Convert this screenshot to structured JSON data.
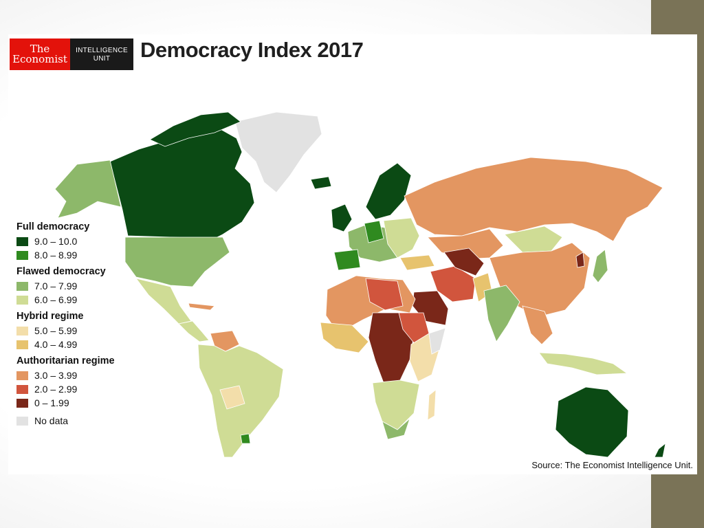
{
  "logo": {
    "line1": "The",
    "line2": "Economist",
    "unit1": "INTELLIGENCE",
    "unit2": "UNIT"
  },
  "title": "Democracy Index 2017",
  "source": "Source: The Economist Intelligence Unit.",
  "legend": [
    {
      "category": "Full democracy",
      "items": [
        {
          "label": "9.0 – 10.0",
          "color": "#0b4a14"
        },
        {
          "label": "8.0 – 8.99",
          "color": "#2f8a1f"
        }
      ]
    },
    {
      "category": "Flawed democracy",
      "items": [
        {
          "label": "7.0 – 7.99",
          "color": "#8db86a"
        },
        {
          "label": "6.0 – 6.99",
          "color": "#cfdc95"
        }
      ]
    },
    {
      "category": "Hybrid regime",
      "items": [
        {
          "label": "5.0 – 5.99",
          "color": "#f3deaa"
        },
        {
          "label": "4.0 – 4.99",
          "color": "#e7c36e"
        }
      ]
    },
    {
      "category": "Authoritarian regime",
      "items": [
        {
          "label": "3.0 – 3.99",
          "color": "#e39661"
        },
        {
          "label": "2.0 – 2.99",
          "color": "#d1553d"
        },
        {
          "label": "0 – 1.99",
          "color": "#7a2719"
        }
      ]
    },
    {
      "category": "",
      "items": [
        {
          "label": "No data",
          "color": "#e2e2e2"
        }
      ]
    }
  ],
  "colors": {
    "full_high": "#0b4a14",
    "full_low": "#2f8a1f",
    "flawed_high": "#8db86a",
    "flawed_low": "#cfdc95",
    "hybrid_high": "#f3deaa",
    "hybrid_low": "#e7c36e",
    "auth_high": "#e39661",
    "auth_mid": "#d1553d",
    "auth_low": "#7a2719",
    "nodata": "#e2e2e2"
  }
}
